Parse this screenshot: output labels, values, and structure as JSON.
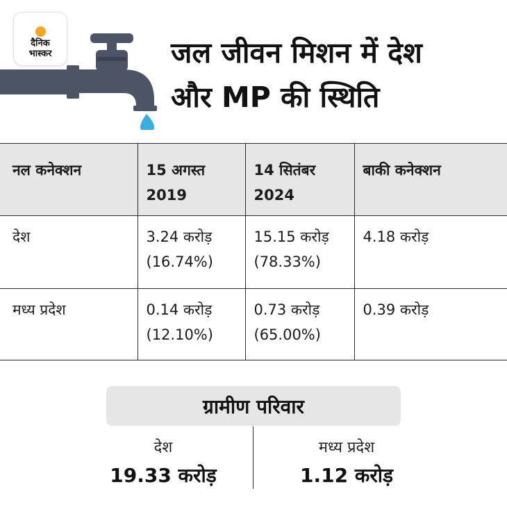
{
  "logo": {
    "line1": "दैनिक",
    "line2": "भास्कर"
  },
  "title": {
    "line1": "जल जीवन मिशन में देश",
    "line2": "और MP की स्थिति"
  },
  "table": {
    "headers": [
      {
        "line1": "नल कनेक्शन",
        "line2": ""
      },
      {
        "line1": "15 अगस्त",
        "line2": "2019"
      },
      {
        "line1": "14 सितंबर",
        "line2": "2024"
      },
      {
        "line1": "बाकी कनेक्शन",
        "line2": ""
      }
    ],
    "rows": [
      {
        "label": "देश",
        "c2019": "3.24 करोड़",
        "p2019": "(16.74%)",
        "c2024": "15.15 करोड़",
        "p2024": "(78.33%)",
        "remaining": "4.18 करोड़"
      },
      {
        "label": "मध्य प्रदेश",
        "c2019": "0.14 करोड़",
        "p2019": "(12.10%)",
        "c2024": "0.73 करोड़",
        "p2024": "(65.00%)",
        "remaining": "0.39 करोड़"
      }
    ]
  },
  "rural": {
    "title": "ग्रामीण परिवार",
    "country_label": "देश",
    "country_value": "19.33 करोड़",
    "mp_label": "मध्य प्रदेश",
    "mp_value": "1.12 करोड़"
  },
  "colors": {
    "tap": "#4c5566",
    "water": "#3aaee0",
    "header_bg": "#e6e6e6",
    "sun": "#f5a623"
  },
  "icons": {
    "tap": "water-tap-icon",
    "drop": "water-drop-icon",
    "logo": "sun-icon"
  }
}
